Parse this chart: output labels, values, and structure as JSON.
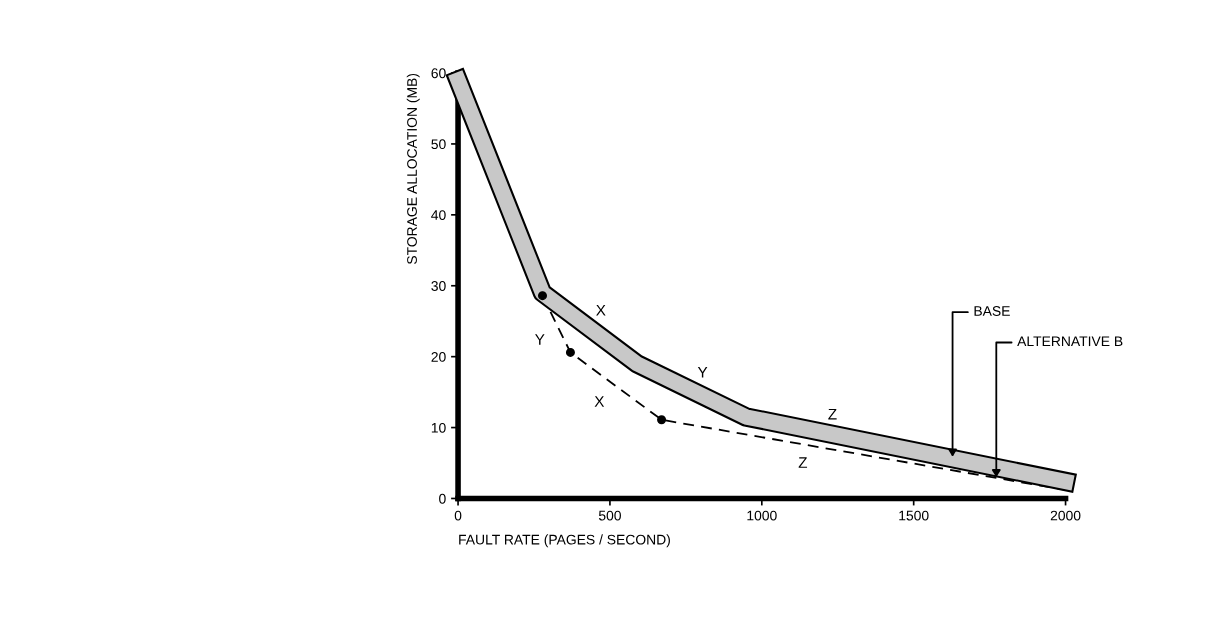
{
  "chart_data": {
    "type": "line",
    "xlabel": "FAULT RATE (PAGES / SECOND)",
    "ylabel": "STORAGE ALLOCATION (MB)",
    "xlim": [
      0,
      2000
    ],
    "ylim": [
      0,
      60
    ],
    "xticks": [
      0,
      500,
      1000,
      1500,
      2000
    ],
    "yticks": [
      0,
      10,
      20,
      30,
      40,
      50,
      60
    ],
    "grid": false,
    "series": [
      {
        "x": [
          0,
          278,
          589,
          948,
          2000
        ],
        "values": [
          59,
          29,
          19,
          11.5,
          2.4
        ],
        "color": "#000000",
        "marker": "none",
        "line_style": "solid"
      },
      {
        "x": [
          278,
          370,
          670,
          2000
        ],
        "values": [
          28.6,
          20.6,
          11.1,
          1.2
        ],
        "color": "#000000",
        "marker": "none",
        "line_style": "dashed"
      },
      {
        "type": "scatter",
        "x": [
          278,
          370,
          670
        ],
        "values": [
          28.6,
          20.6,
          11.1
        ],
        "color": "#000000",
        "marker": "circle"
      }
    ],
    "annotations": [
      {
        "text": "X",
        "x": 433.5,
        "y": 24
      },
      {
        "text": "Y",
        "x": 324,
        "y": 24.6
      },
      {
        "text": "X",
        "x": 520,
        "y": 15.85
      },
      {
        "text": "Y",
        "x": 768.5,
        "y": 15.25
      },
      {
        "text": "Z",
        "x": 1196,
        "y": 9.35
      },
      {
        "text": "Z",
        "x": 1190,
        "y": 7.23
      },
      {
        "text": "BASE",
        "x": 1628,
        "y": 5.9
      },
      {
        "text": "ALTERNATIVE B",
        "x": 1772,
        "y": 3.0
      }
    ]
  }
}
